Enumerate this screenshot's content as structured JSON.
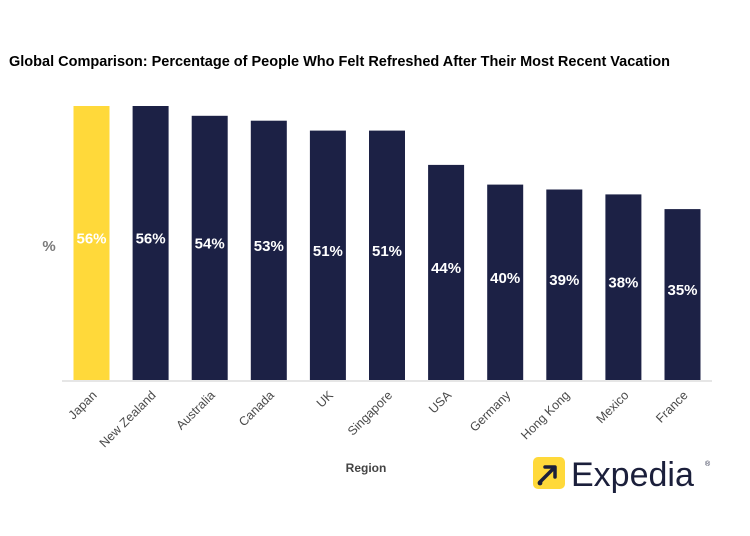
{
  "chart_data": {
    "type": "bar",
    "title": "Global Comparison: Percentage of People Who Felt Refreshed After Their Most Recent Vacation",
    "ylabel": "%",
    "xlabel": "Region",
    "ylim": [
      0,
      56
    ],
    "grid": false,
    "categories": [
      "Japan",
      "New Zealand",
      "Australia",
      "Canada",
      "UK",
      "Singapore",
      "USA",
      "Germany",
      "Hong Kong",
      "Mexico",
      "France"
    ],
    "values": [
      56,
      56,
      54,
      53,
      51,
      51,
      44,
      40,
      39,
      38,
      35
    ],
    "data_labels": [
      "56%",
      "56%",
      "54%",
      "53%",
      "51%",
      "51%",
      "44%",
      "40%",
      "39%",
      "38%",
      "35%"
    ],
    "highlight_index": 0,
    "colors": {
      "bar": "#1c2145",
      "highlight": "#ffd93a",
      "baseline": "#e6e6e6"
    }
  },
  "brand": {
    "name": "Expedia",
    "registered": "®",
    "colors": {
      "badge": "#ffd93a",
      "text": "#1b1f3b"
    }
  }
}
